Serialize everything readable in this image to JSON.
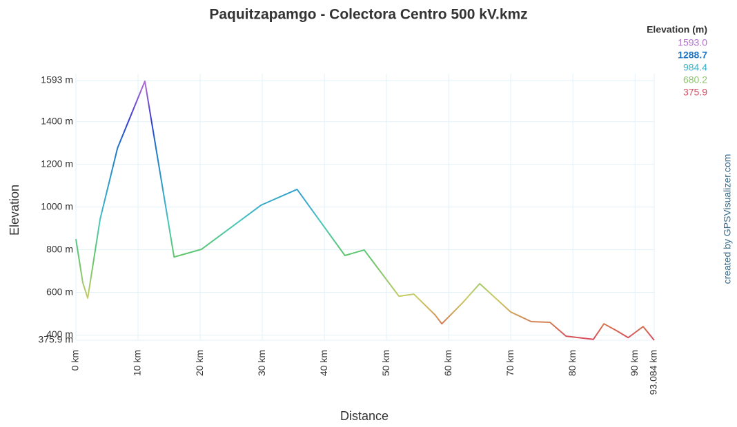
{
  "chart_data": {
    "type": "line",
    "title": "Paquitzapamgo - Colectora Centro 500 kV.kmz",
    "x_label": "Distance",
    "y_label": "Elevation",
    "credit": "created by GPSVisualizer.com",
    "xlim": [
      0,
      93.084
    ],
    "xticks": [
      {
        "value": 0,
        "label": "0 km"
      },
      {
        "value": 10,
        "label": "10 km"
      },
      {
        "value": 20,
        "label": "20 km"
      },
      {
        "value": 30,
        "label": "30 km"
      },
      {
        "value": 40,
        "label": "40 km"
      },
      {
        "value": 50,
        "label": "50 km"
      },
      {
        "value": 60,
        "label": "60 km"
      },
      {
        "value": 70,
        "label": "70 km"
      },
      {
        "value": 80,
        "label": "80 km"
      },
      {
        "value": 90,
        "label": "90 km"
      },
      {
        "value": 93.084,
        "label": "93.084 km"
      }
    ],
    "ylim": [
      375.9,
      1593
    ],
    "yticks": [
      {
        "value": 375.9,
        "label": "375.9 m"
      },
      {
        "value": 400,
        "label": "400 m"
      },
      {
        "value": 600,
        "label": "600 m"
      },
      {
        "value": 800,
        "label": "800 m"
      },
      {
        "value": 1000,
        "label": "1000 m"
      },
      {
        "value": 1200,
        "label": "1200 m"
      },
      {
        "value": 1400,
        "label": "1400 m"
      },
      {
        "value": 1593,
        "label": "1593 m"
      }
    ],
    "grid": true,
    "legend": {
      "title": "Elevation (m)",
      "values": [
        1593,
        1288.7,
        984.4,
        680.2,
        375.9
      ],
      "value_labels": [
        "1593.0",
        "1288.7",
        "984.4",
        "680.2",
        "375.9"
      ],
      "colors": [
        "#b36fcf",
        "#1f74c4",
        "#3fb0c8",
        "#8dc66e",
        "#d94a5e"
      ]
    },
    "series": [
      {
        "name": "Elevation",
        "x": [
          0,
          1.1,
          1.9,
          3.9,
          6.7,
          11.1,
          15.8,
          20.2,
          29.8,
          35.6,
          43.3,
          46.4,
          52.0,
          54.4,
          57.8,
          58.9,
          62.2,
          65.0,
          70.0,
          73.3,
          76.3,
          78.9,
          83.3,
          85.0,
          87.0,
          88.9,
          91.3,
          93.084
        ],
        "values": [
          850,
          647,
          573,
          944,
          1277,
          1590,
          766,
          802,
          1009,
          1083,
          773,
          799,
          582,
          592,
          495,
          453,
          550,
          641,
          508,
          463,
          460,
          395,
          380,
          453,
          421,
          388,
          440,
          375.9
        ]
      }
    ]
  }
}
